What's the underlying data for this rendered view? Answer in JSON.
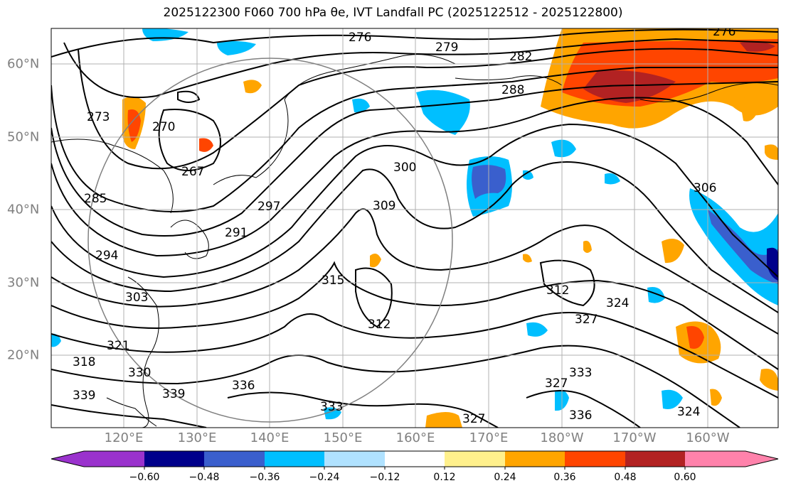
{
  "title": "2025122300 F060 700 hPa θe, IVT Landfall PC (2025122512 - 2025122800)",
  "lon_labels": [
    "120°E",
    "130°E",
    "140°E",
    "150°E",
    "160°E",
    "170°E",
    "180°W",
    "170°W",
    "160°W"
  ],
  "lat_labels": [
    "60°N",
    "50°N",
    "40°N",
    "30°N",
    "20°N"
  ],
  "colorbar": {
    "ticks": [
      "−0.60",
      "−0.48",
      "−0.36",
      "−0.24",
      "−0.12",
      "0.12",
      "0.24",
      "0.36",
      "0.48",
      "0.60"
    ],
    "colors": [
      "#9a32cd",
      "#00008b",
      "#3a5fcd",
      "#00bfff",
      "#b0e2ff",
      "#ffffff",
      "#fff08c",
      "#ffa500",
      "#ff4500",
      "#b22222",
      "#ff82ab"
    ]
  },
  "contour_labels": [
    "276",
    "279",
    "282",
    "288",
    "273",
    "270",
    "267",
    "285",
    "291",
    "294",
    "297",
    "300",
    "303",
    "309",
    "306",
    "312",
    "315",
    "318",
    "321",
    "324",
    "327",
    "330",
    "333",
    "336",
    "339"
  ]
}
